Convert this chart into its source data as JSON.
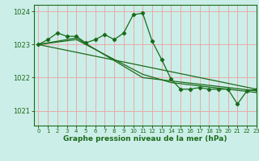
{
  "title": "Graphe pression niveau de la mer (hPa)",
  "bg_color": "#cceee8",
  "grid_color": "#e8aaaa",
  "line_color": "#1a6b1a",
  "xlim": [
    -0.5,
    23
  ],
  "ylim": [
    1020.55,
    1024.2
  ],
  "yticks": [
    1021,
    1022,
    1023,
    1024
  ],
  "xticks": [
    0,
    1,
    2,
    3,
    4,
    5,
    6,
    7,
    8,
    9,
    10,
    11,
    12,
    13,
    14,
    15,
    16,
    17,
    18,
    19,
    20,
    21,
    22,
    23
  ],
  "series_markers": {
    "x": [
      0,
      1,
      2,
      3,
      4,
      5,
      6,
      7,
      8,
      9,
      10,
      11,
      12,
      13,
      14,
      15,
      16,
      17,
      18,
      19,
      20,
      21,
      22,
      23
    ],
    "y": [
      1023.0,
      1023.15,
      1023.35,
      1023.25,
      1023.25,
      1023.05,
      1023.15,
      1023.3,
      1023.15,
      1023.35,
      1023.9,
      1023.95,
      1023.1,
      1022.55,
      1021.95,
      1021.65,
      1021.65,
      1021.7,
      1021.65,
      1021.65,
      1021.65,
      1021.2,
      1021.6,
      1021.65
    ]
  },
  "series_smooth1": {
    "x": [
      0,
      23
    ],
    "y": [
      1023.0,
      1021.65
    ]
  },
  "series_smooth2": {
    "x": [
      0,
      4,
      11,
      14,
      23
    ],
    "y": [
      1023.0,
      1023.2,
      1022.0,
      1021.9,
      1021.6
    ]
  },
  "series_smooth3": {
    "x": [
      0,
      4,
      11,
      14,
      23
    ],
    "y": [
      1023.0,
      1023.15,
      1022.1,
      1021.85,
      1021.55
    ]
  }
}
